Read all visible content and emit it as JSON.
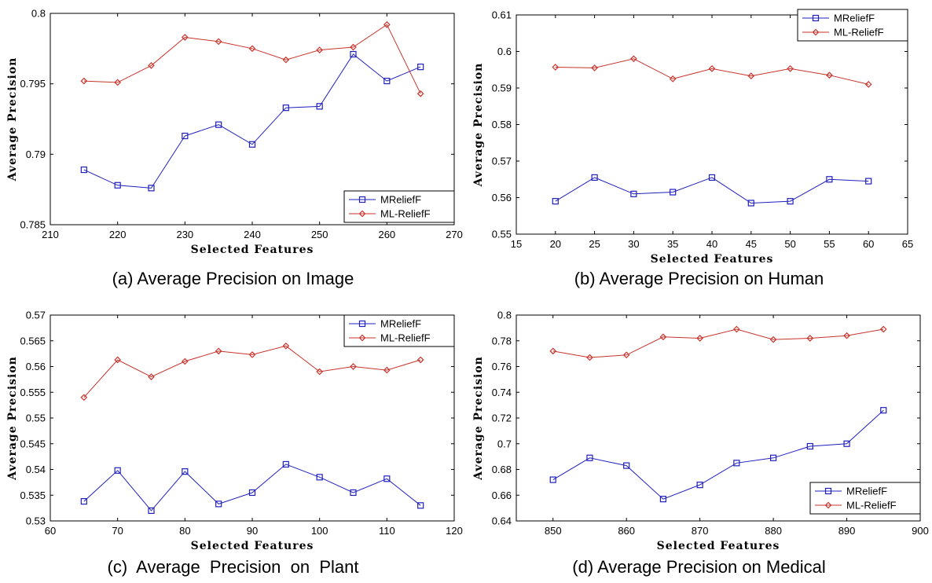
{
  "colors": {
    "mrelieff": "#1f1fbf",
    "mlrelieff": "#c8332b"
  },
  "chart_data": [
    {
      "type": "line",
      "caption": "(a) Average Precision on Image",
      "xlabel": "Selected Features",
      "ylabel": "Average Precision",
      "xlim": [
        210,
        270
      ],
      "ylim": [
        0.785,
        0.8
      ],
      "xticks": [
        "210",
        "220",
        "230",
        "240",
        "250",
        "260",
        "270"
      ],
      "yticks": [
        "0.785",
        "0.79",
        "0.795",
        "0.8"
      ],
      "legend": "bottom-right",
      "x": [
        215,
        220,
        225,
        230,
        235,
        240,
        245,
        250,
        255,
        260,
        265
      ],
      "series": [
        {
          "name": "MReliefF",
          "marker": "square",
          "values": [
            0.7889,
            0.7878,
            0.7876,
            0.7913,
            0.7921,
            0.7907,
            0.7933,
            0.7934,
            0.7971,
            0.7952,
            0.7962
          ]
        },
        {
          "name": "ML-ReliefF",
          "marker": "diamond",
          "values": [
            0.7952,
            0.7951,
            0.7963,
            0.7983,
            0.798,
            0.7975,
            0.7967,
            0.7974,
            0.7976,
            0.7992,
            0.7943
          ]
        }
      ]
    },
    {
      "type": "line",
      "caption": "(b) Average Precision on Human",
      "xlabel": "Selected Features",
      "ylabel": "Average Precision",
      "xlim": [
        15,
        65
      ],
      "ylim": [
        0.55,
        0.61
      ],
      "xticks": [
        "15",
        "20",
        "25",
        "30",
        "35",
        "40",
        "45",
        "50",
        "55",
        "60",
        "65"
      ],
      "yticks": [
        "0.55",
        "0.56",
        "0.57",
        "0.58",
        "0.59",
        "0.6",
        "0.61"
      ],
      "legend": "top-right",
      "x": [
        20,
        25,
        30,
        35,
        40,
        45,
        50,
        55,
        60
      ],
      "series": [
        {
          "name": "MReliefF",
          "marker": "square",
          "values": [
            0.559,
            0.5655,
            0.561,
            0.5615,
            0.5655,
            0.5585,
            0.559,
            0.565,
            0.5645
          ]
        },
        {
          "name": "ML-ReliefF",
          "marker": "diamond",
          "values": [
            0.5957,
            0.5955,
            0.598,
            0.5925,
            0.5953,
            0.5933,
            0.5953,
            0.5935,
            0.591
          ]
        }
      ]
    },
    {
      "type": "line",
      "caption": "(c)  Average  Precision  on  Plant",
      "xlabel": "Selected Features",
      "ylabel": "Average Precision",
      "xlim": [
        60,
        120
      ],
      "ylim": [
        0.53,
        0.57
      ],
      "xticks": [
        "60",
        "70",
        "80",
        "90",
        "100",
        "110",
        "120"
      ],
      "yticks": [
        "0.53",
        "0.535",
        "0.54",
        "0.545",
        "0.55",
        "0.555",
        "0.56",
        "0.565",
        "0.57"
      ],
      "legend": "top-right",
      "x": [
        65,
        70,
        75,
        80,
        85,
        90,
        95,
        100,
        105,
        110,
        115
      ],
      "series": [
        {
          "name": "MReliefF",
          "marker": "square",
          "values": [
            0.5338,
            0.5398,
            0.532,
            0.5396,
            0.5333,
            0.5355,
            0.541,
            0.5385,
            0.5355,
            0.5382,
            0.533
          ]
        },
        {
          "name": "ML-ReliefF",
          "marker": "diamond",
          "values": [
            0.554,
            0.5613,
            0.558,
            0.561,
            0.563,
            0.5623,
            0.564,
            0.559,
            0.56,
            0.5593,
            0.5613
          ]
        }
      ]
    },
    {
      "type": "line",
      "caption": "(d) Average Precision on Medical",
      "xlabel": "Selected Features",
      "ylabel": "Average Precision",
      "xlim": [
        845,
        900
      ],
      "ylim": [
        0.64,
        0.8
      ],
      "xticks": [
        "850",
        "860",
        "870",
        "880",
        "890",
        "900"
      ],
      "xtickvals": [
        850,
        860,
        870,
        880,
        890,
        900
      ],
      "yticks": [
        "0.64",
        "0.66",
        "0.68",
        "0.7",
        "0.72",
        "0.74",
        "0.76",
        "0.78",
        "0.8"
      ],
      "legend": "bottom-right",
      "x": [
        850,
        855,
        860,
        865,
        870,
        875,
        880,
        885,
        890,
        895
      ],
      "series": [
        {
          "name": "MReliefF",
          "marker": "square",
          "values": [
            0.672,
            0.689,
            0.683,
            0.657,
            0.668,
            0.685,
            0.689,
            0.698,
            0.7,
            0.726
          ]
        },
        {
          "name": "ML-ReliefF",
          "marker": "diamond",
          "values": [
            0.772,
            0.767,
            0.769,
            0.783,
            0.782,
            0.789,
            0.781,
            0.782,
            0.784,
            0.789
          ]
        }
      ]
    }
  ]
}
